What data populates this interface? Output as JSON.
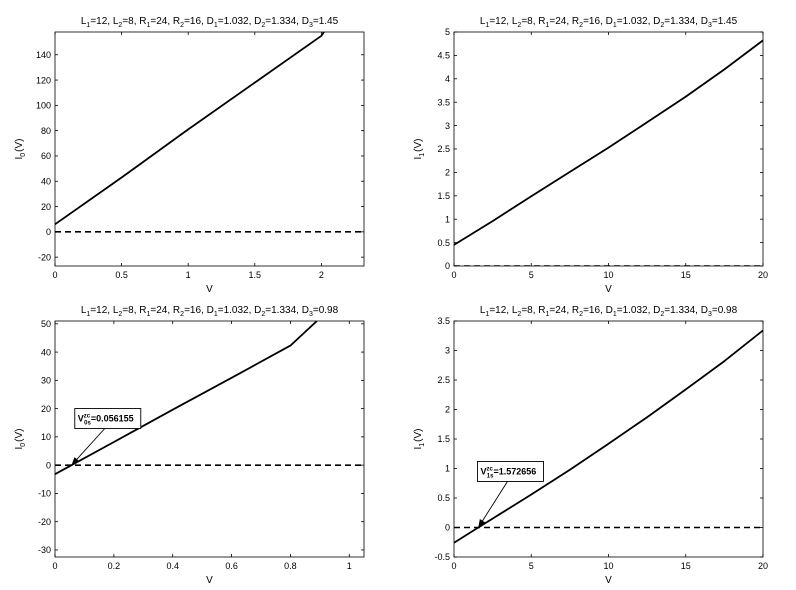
{
  "panels": [
    {
      "title": {
        "L1": "12",
        "L2": "8",
        "R1": "24",
        "R2": "16",
        "D1": "1.032",
        "D2": "1.334",
        "D3": "1.45"
      },
      "xlabel": "V",
      "ylabel": {
        "base": "I",
        "sub": "0",
        "unit": "(V)"
      },
      "xlim": [
        0,
        2.32
      ],
      "ylim": [
        -27,
        158
      ],
      "xticks": [
        0,
        0.5,
        1,
        1.5,
        2
      ],
      "xtick_labels": [
        "0",
        "0.5",
        "1",
        "1.5",
        "2"
      ],
      "yticks": [
        -20,
        0,
        20,
        40,
        60,
        80,
        100,
        120,
        140
      ],
      "ytick_labels": [
        "-20",
        "0",
        "20",
        "40",
        "60",
        "80",
        "100",
        "120",
        "140"
      ],
      "curve": {
        "x": [
          0,
          0.5,
          1,
          1.5,
          2,
          2.02
        ],
        "y": [
          6,
          43,
          81,
          118,
          155,
          158
        ]
      },
      "zero_line_y": 0,
      "annotation": null
    },
    {
      "title": {
        "L1": "12",
        "L2": "8",
        "R1": "24",
        "R2": "16",
        "D1": "1.032",
        "D2": "1.334",
        "D3": "1.45"
      },
      "xlabel": "V",
      "ylabel": {
        "base": "I",
        "sub": "1",
        "unit": "(V)"
      },
      "xlim": [
        0,
        20
      ],
      "ylim": [
        0,
        5
      ],
      "xticks": [
        0,
        5,
        10,
        15,
        20
      ],
      "xtick_labels": [
        "0",
        "5",
        "10",
        "15",
        "20"
      ],
      "yticks": [
        0,
        0.5,
        1,
        1.5,
        2,
        2.5,
        3,
        3.5,
        4,
        4.5,
        5
      ],
      "ytick_labels": [
        "0",
        "0.5",
        "1",
        "1.5",
        "2",
        "2.5",
        "3",
        "3.5",
        "4",
        "4.5",
        "5"
      ],
      "curve": {
        "x": [
          0,
          2.5,
          5,
          7.5,
          10,
          12.5,
          15,
          17.5,
          20
        ],
        "y": [
          0.45,
          0.96,
          1.49,
          2.01,
          2.53,
          3.07,
          3.62,
          4.2,
          4.82
        ]
      },
      "zero_line_y": 0,
      "annotation": null
    },
    {
      "title": {
        "L1": "12",
        "L2": "8",
        "R1": "24",
        "R2": "16",
        "D1": "1.032",
        "D2": "1.334",
        "D3": "0.98"
      },
      "xlabel": "V",
      "ylabel": {
        "base": "I",
        "sub": "0",
        "unit": "(V)"
      },
      "xlim": [
        0,
        1.05
      ],
      "ylim": [
        -32.5,
        51
      ],
      "xticks": [
        0,
        0.2,
        0.4,
        0.6,
        0.8,
        1
      ],
      "xtick_labels": [
        "0",
        "0.2",
        "0.4",
        "0.6",
        "0.8",
        "1"
      ],
      "yticks": [
        -30,
        -20,
        -10,
        0,
        10,
        20,
        30,
        40,
        50
      ],
      "ytick_labels": [
        "-30",
        "-20",
        "-10",
        "0",
        "10",
        "20",
        "30",
        "40",
        "50"
      ],
      "curve": {
        "x": [
          0,
          0.2,
          0.4,
          0.6,
          0.8,
          0.89
        ],
        "y": [
          -3.2,
          8.2,
          19.6,
          30.9,
          42.3,
          51
        ]
      },
      "zero_line_y": 0,
      "annotation": {
        "base": "V",
        "sup": "zc",
        "sub": "0s",
        "value": "=0.056155",
        "x": 0.056155,
        "y": 0,
        "box_x": 0.04,
        "box_y": 16.5
      }
    },
    {
      "title": {
        "L1": "12",
        "L2": "8",
        "R1": "24",
        "R2": "16",
        "D1": "1.032",
        "D2": "1.334",
        "D3": "0.98"
      },
      "xlabel": "V",
      "ylabel": {
        "base": "I",
        "sub": "1",
        "unit": "(V)"
      },
      "xlim": [
        0,
        20
      ],
      "ylim": [
        -0.5,
        3.5
      ],
      "xticks": [
        0,
        5,
        10,
        15,
        20
      ],
      "xtick_labels": [
        "0",
        "5",
        "10",
        "15",
        "20"
      ],
      "yticks": [
        -0.5,
        0,
        0.5,
        1,
        1.5,
        2,
        2.5,
        3,
        3.5
      ],
      "ytick_labels": [
        "-0.5",
        "0",
        "0.5",
        "1",
        "1.5",
        "2",
        "2.5",
        "3",
        "3.5"
      ],
      "curve": {
        "x": [
          0,
          1.572656,
          5,
          7.5,
          10,
          12.5,
          15,
          17.5,
          20
        ],
        "y": [
          -0.26,
          0,
          0.56,
          0.98,
          1.42,
          1.87,
          2.34,
          2.82,
          3.34
        ]
      },
      "zero_line_y": 0,
      "annotation": {
        "base": "V",
        "sup": "zc",
        "sub": "1s",
        "value": "=1.572656",
        "x": 1.572656,
        "y": 0,
        "box_x": 1.0,
        "box_y": 0.95
      }
    }
  ],
  "chart_data": [
    {
      "type": "line",
      "title": "L1=12, L2=8, R1=24, R2=16, D1=1.032, D2=1.334, D3=1.45",
      "xlabel": "V",
      "ylabel": "I0(V)",
      "xlim": [
        0,
        2.32
      ],
      "ylim": [
        -27,
        158
      ],
      "grid": false,
      "series": [
        {
          "x": [
            0,
            0.5,
            1,
            1.5,
            2,
            2.02
          ],
          "y": [
            6,
            43,
            81,
            118,
            155,
            158
          ],
          "style": "solid"
        },
        {
          "x": [
            0,
            2.32
          ],
          "y": [
            0,
            0
          ],
          "style": "dashed"
        }
      ]
    },
    {
      "type": "line",
      "title": "L1=12, L2=8, R1=24, R2=16, D1=1.032, D2=1.334, D3=1.45",
      "xlabel": "V",
      "ylabel": "I1(V)",
      "xlim": [
        0,
        20
      ],
      "ylim": [
        0,
        5
      ],
      "grid": false,
      "series": [
        {
          "x": [
            0,
            2.5,
            5,
            7.5,
            10,
            12.5,
            15,
            17.5,
            20
          ],
          "y": [
            0.45,
            0.96,
            1.49,
            2.01,
            2.53,
            3.07,
            3.62,
            4.2,
            4.82
          ],
          "style": "solid"
        },
        {
          "x": [
            0,
            20
          ],
          "y": [
            0,
            0
          ],
          "style": "dashed"
        }
      ]
    },
    {
      "type": "line",
      "title": "L1=12, L2=8, R1=24, R2=16, D1=1.032, D2=1.334, D3=0.98",
      "xlabel": "V",
      "ylabel": "I0(V)",
      "xlim": [
        0,
        1.05
      ],
      "ylim": [
        -32.5,
        51
      ],
      "grid": false,
      "series": [
        {
          "x": [
            0,
            0.2,
            0.4,
            0.6,
            0.8,
            0.89
          ],
          "y": [
            -3.2,
            8.2,
            19.6,
            30.9,
            42.3,
            51
          ],
          "style": "solid"
        },
        {
          "x": [
            0,
            1.05
          ],
          "y": [
            0,
            0
          ],
          "style": "dashed"
        }
      ],
      "annotations": [
        {
          "text": "V0s^zc=0.056155",
          "x": 0.056155,
          "y": 0
        }
      ]
    },
    {
      "type": "line",
      "title": "L1=12, L2=8, R1=24, R2=16, D1=1.032, D2=1.334, D3=0.98",
      "xlabel": "V",
      "ylabel": "I1(V)",
      "xlim": [
        0,
        20
      ],
      "ylim": [
        -0.5,
        3.5
      ],
      "grid": false,
      "series": [
        {
          "x": [
            0,
            1.572656,
            5,
            7.5,
            10,
            12.5,
            15,
            17.5,
            20
          ],
          "y": [
            -0.26,
            0,
            0.56,
            0.98,
            1.42,
            1.87,
            2.34,
            2.82,
            3.34
          ],
          "style": "solid"
        },
        {
          "x": [
            0,
            20
          ],
          "y": [
            0,
            0
          ],
          "style": "dashed"
        }
      ],
      "annotations": [
        {
          "text": "V1s^zc=1.572656",
          "x": 1.572656,
          "y": 0
        }
      ]
    }
  ]
}
